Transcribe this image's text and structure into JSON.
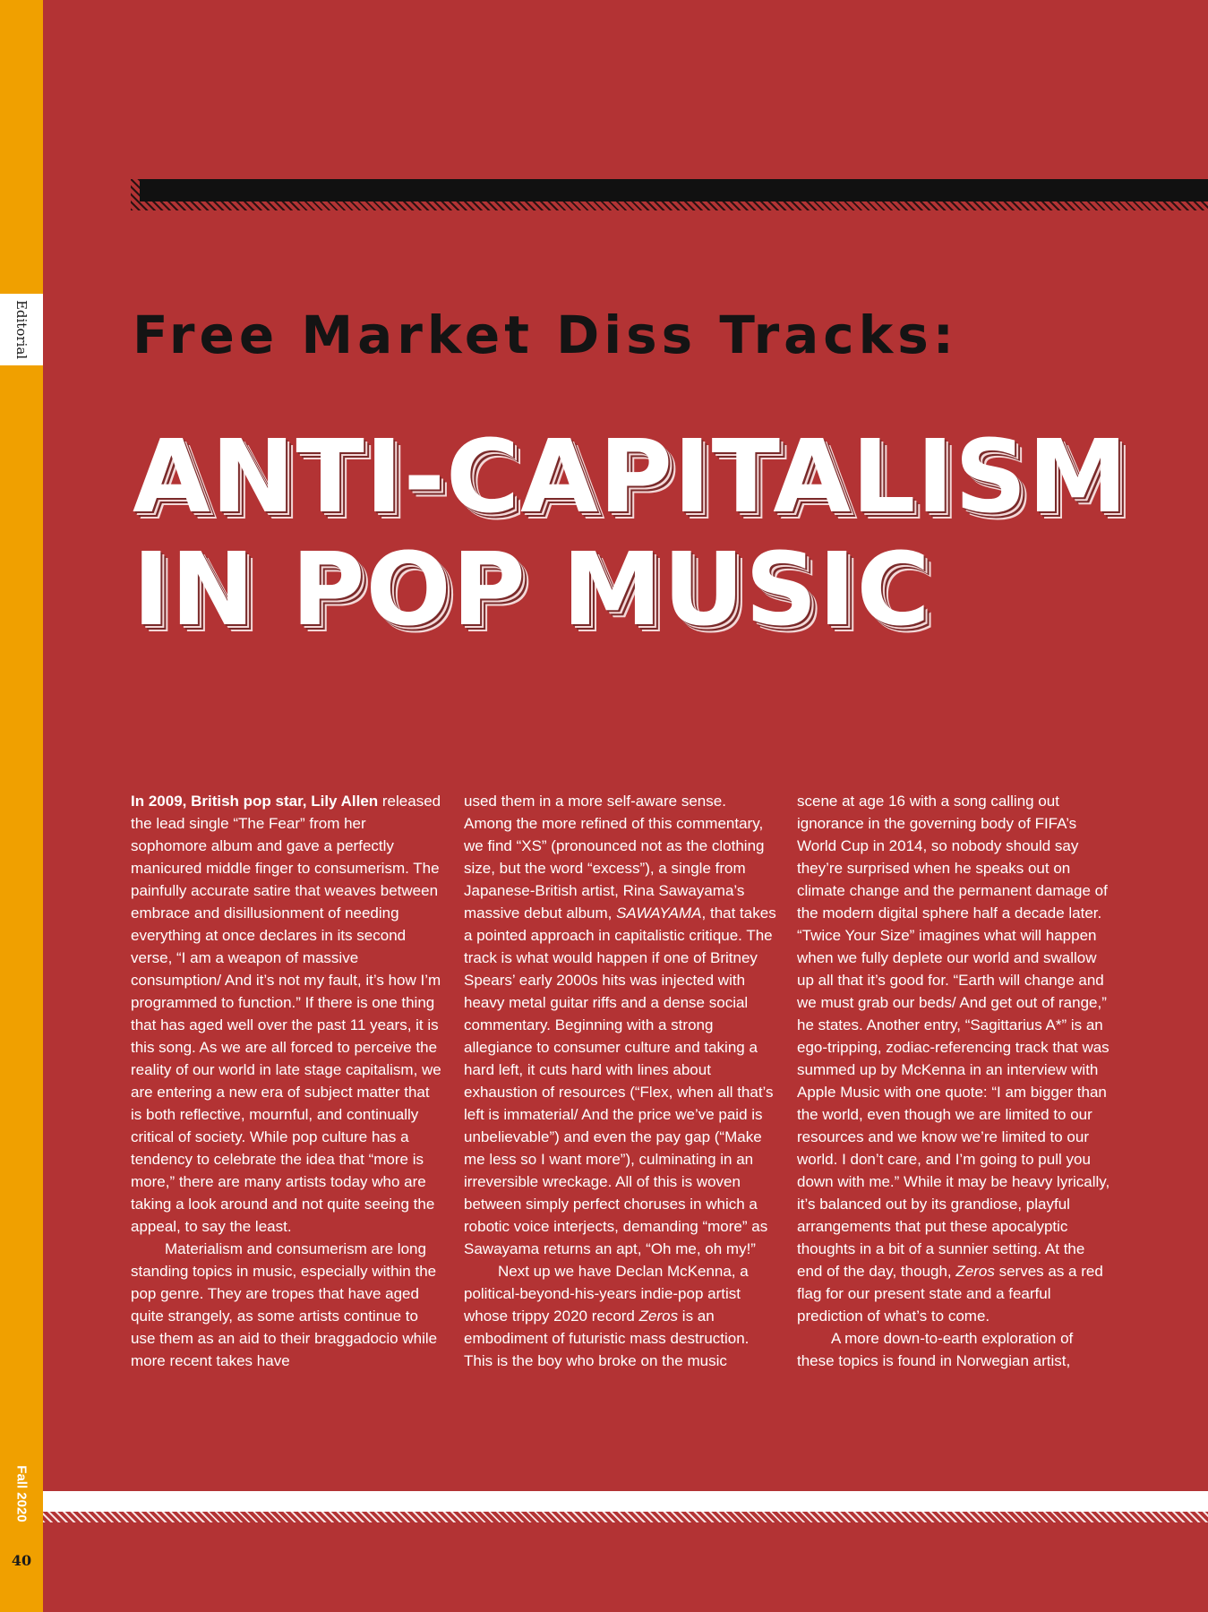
{
  "sidebar": {
    "section": "Editorial",
    "issue": "Fall 2020",
    "page_number": "40"
  },
  "article": {
    "kicker": "Free Market Diss Tracks:",
    "headline_line1": "ANTI-CAPITALISM",
    "headline_line2": "IN POP MUSIC",
    "lead_bold": "In 2009, British pop star, Lily Allen",
    "p1_rest": " released the lead single “The Fear” from her sophomore album and gave a perfectly manicured middle finger to consumerism. The painfully accurate satire that weaves between embrace and disillusionment of needing everything at once declares in its second verse, “I am a weapon of massive consumption/ And it’s not my fault, it’s how I’m programmed to function.” If there is one thing that has aged well over the past 11 years, it is this song. As we are all forced to perceive the reality of our world in late stage capitalism, we are entering a new era of subject matter that is both reflective, mournful, and continually critical of society. While pop culture has a tendency to celebrate the idea that “more is more,” there are many artists today who are taking a look around and not quite seeing the appeal, to say the least.",
    "p2_a": "Materialism and consumerism are long standing topics in music, especially within the pop genre. They are tropes that have aged quite strangely, as some artists continue to use them as an aid to their braggadocio while more recent takes have",
    "p2_b": "used them in a more self-aware sense. Among the more refined of this commentary, we find “XS” (pronounced not as the clothing size, but the word “excess”), a single from Japanese-British artist, Rina Sawayama’s massive debut album, ",
    "p2_italic": "SAWAYAMA",
    "p2_c": ", that takes a pointed approach in capitalistic critique. The track is what would happen if one of Britney Spears’ early 2000s hits was injected with heavy metal guitar riffs and a dense social commentary. Beginning with a strong allegiance to consumer culture and taking a hard left, it cuts hard with lines about exhaustion of resources (“Flex, when all that’s left is immaterial/ And the price we’ve paid is unbelievable”) and even the pay gap (“Make me less so I want more”), culminating in an irreversible wreckage. All of this is woven between simply perfect choruses in which a robotic voice interjects, demanding “more” as Sawayama returns an apt, “Oh me, oh my!”",
    "p3_a": "Next up we have Declan McKenna, a political-beyond-his-years indie-pop artist whose trippy 2020 record ",
    "p3_italic": "Zeros",
    "p3_b": " is an embodiment of futuristic mass destruction. This is the boy who broke on the music",
    "p3_c": "scene at age 16 with a song calling out ignorance in the governing body of FIFA’s World Cup in 2014, so nobody should say they’re surprised when he speaks out on climate change and the permanent damage of the modern digital sphere half a decade later. “Twice Your Size” imagines what will happen when we fully deplete our world and swallow up all that it’s good for. “Earth will change and we must grab our beds/ And get out of range,” he states. Another entry, “Sagittarius A*” is an ego-tripping, zodiac-referencing track that was summed up by McKenna in an interview with Apple Music with one quote: “I am bigger than the world, even though we are limited to our resources and we know we’re limited to our world. I don’t care, and I’m going to pull you down with me.” While it may be heavy lyrically, it’s balanced out by its grandiose, playful arrangements that put these apocalyptic thoughts in a bit of a sunnier setting. At the end of the day, though, ",
    "p3_italic2": "Zeros",
    "p3_d": " serves as a red flag for our present state and a fearful prediction of what’s to come.",
    "p4": "A more down-to-earth exploration of these topics is found in Norwegian artist,"
  }
}
